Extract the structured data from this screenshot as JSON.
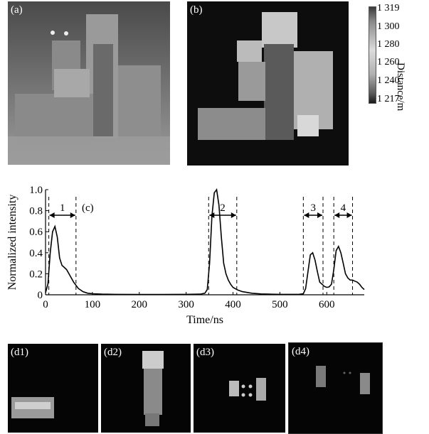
{
  "panels": {
    "a": "(a)",
    "b": "(b)",
    "c": "(c)",
    "d1": "(d1)",
    "d2": "(d2)",
    "d3": "(d3)",
    "d4": "(d4)"
  },
  "colorbar": {
    "ticks": [
      "1 319",
      "1 300",
      "1 280",
      "1 260",
      "1 240",
      "1 217"
    ],
    "label": "Distance/m"
  },
  "chart_data": {
    "type": "line",
    "xlabel": "Time/ns",
    "ylabel": "Normalized intensity",
    "xlim": [
      0,
      680
    ],
    "ylim": [
      0,
      1.0
    ],
    "xticks": [
      "0",
      "100",
      "200",
      "300",
      "400",
      "500",
      "600"
    ],
    "yticks": [
      "0",
      "0.2",
      "0.4",
      "0.6",
      "0.8",
      "1.0"
    ],
    "series": [
      {
        "x": [
          0,
          5,
          10,
          15,
          20,
          25,
          30,
          35,
          40,
          45,
          50,
          60,
          70,
          80,
          90,
          100,
          120,
          150,
          200,
          250,
          300,
          330,
          340,
          345,
          350,
          355,
          360,
          365,
          370,
          375,
          380,
          385,
          390,
          395,
          400,
          410,
          420,
          440,
          460,
          500,
          540,
          550,
          555,
          560,
          565,
          570,
          575,
          580,
          585,
          590,
          595,
          600,
          605,
          610,
          615,
          620,
          625,
          630,
          635,
          640,
          645,
          650,
          655,
          660,
          665,
          670,
          675,
          680
        ],
        "values": [
          0.02,
          0.1,
          0.4,
          0.6,
          0.65,
          0.55,
          0.35,
          0.28,
          0.26,
          0.24,
          0.2,
          0.12,
          0.06,
          0.03,
          0.015,
          0.01,
          0.006,
          0.004,
          0.003,
          0.003,
          0.004,
          0.006,
          0.015,
          0.05,
          0.3,
          0.75,
          0.97,
          1.0,
          0.85,
          0.55,
          0.3,
          0.2,
          0.14,
          0.1,
          0.07,
          0.045,
          0.03,
          0.015,
          0.008,
          0.004,
          0.004,
          0.01,
          0.06,
          0.22,
          0.38,
          0.4,
          0.33,
          0.22,
          0.12,
          0.1,
          0.08,
          0.07,
          0.075,
          0.1,
          0.24,
          0.42,
          0.46,
          0.4,
          0.3,
          0.2,
          0.16,
          0.14,
          0.14,
          0.13,
          0.12,
          0.1,
          0.07,
          0.05
        ]
      }
    ],
    "gates": [
      {
        "label": "1",
        "start": 7,
        "end": 65
      },
      {
        "label": "2",
        "start": 348,
        "end": 408
      },
      {
        "label": "3",
        "start": 550,
        "end": 592
      },
      {
        "label": "4",
        "start": 615,
        "end": 655
      }
    ]
  }
}
